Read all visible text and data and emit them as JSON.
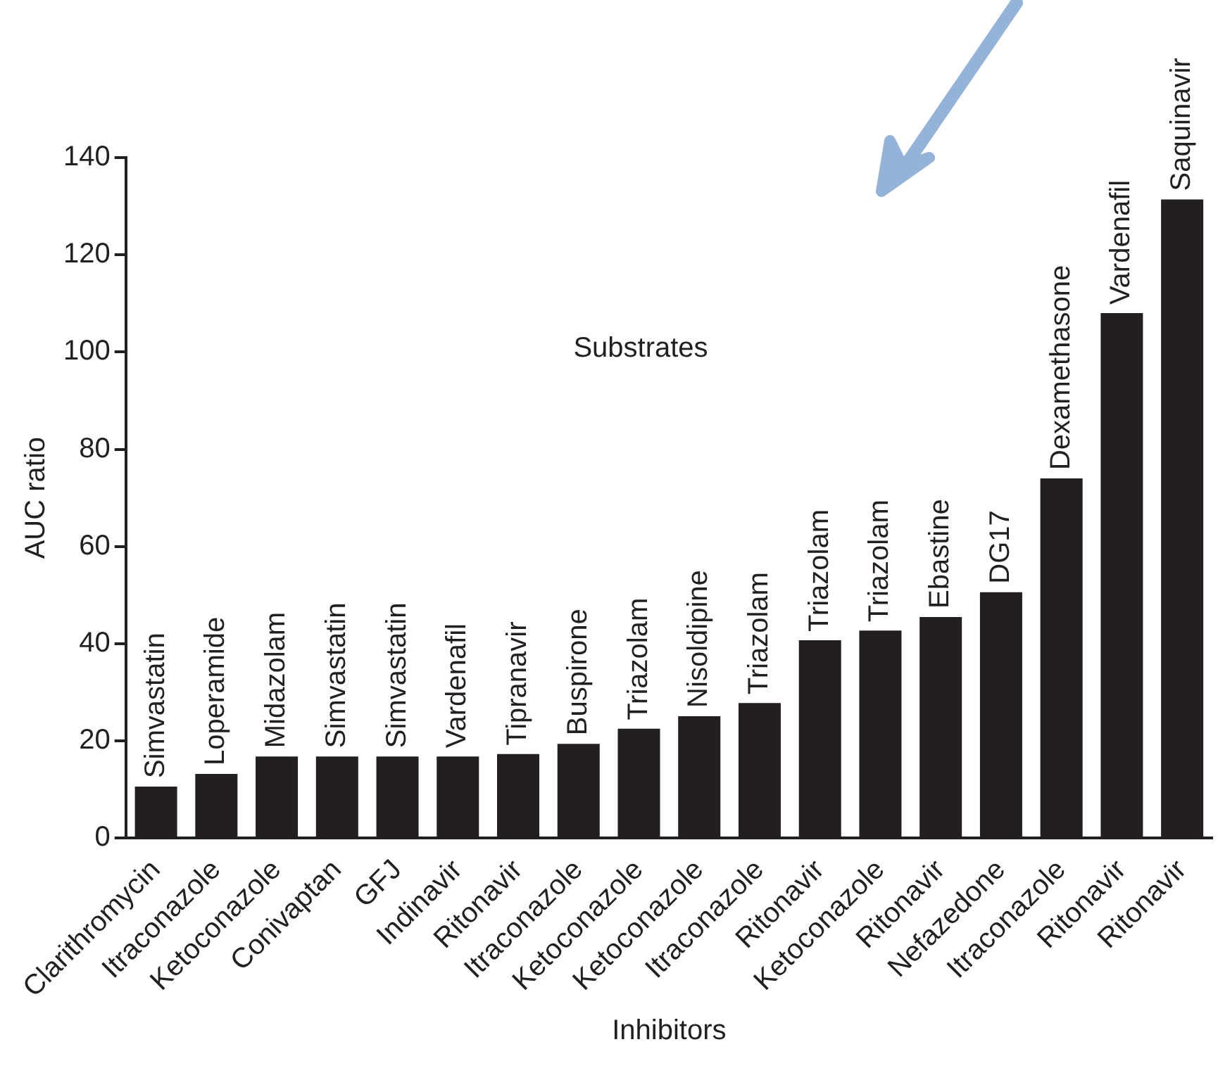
{
  "chart_data": {
    "type": "bar",
    "xlabel": "Inhibitors",
    "ylabel": "AUC ratio",
    "annotations": [
      "Substrates"
    ],
    "categories": [
      "Clarithromycin",
      "Itraconazole",
      "Ketoconazole",
      "Conivaptan",
      "GFJ",
      "Indinavir",
      "Ritonavir",
      "Itraconazole",
      "Ketoconazole",
      "Ketoconazole",
      "Itraconazole",
      "Ritonavir",
      "Ketoconazole",
      "Ritonavir",
      "Nefazedone",
      "Itraconazole",
      "Ritonavir",
      "Ritonavir"
    ],
    "values": [
      10.6,
      13.2,
      16.8,
      16.8,
      16.8,
      16.8,
      17.3,
      19.4,
      22.5,
      25.1,
      27.8,
      40.7,
      42.7,
      45.5,
      50.6,
      74,
      108,
      131.4
    ],
    "value_labels": [
      "Simvastatin",
      "Loperamide",
      "Midazolam",
      "Simvastatin",
      "Simvastatin",
      "Vardenafil",
      "Tipranavir",
      "Buspirone",
      "Triazolam",
      "Nisoldipine",
      "Triazolam",
      "Triazolam",
      "Triazolam",
      "Ebastine",
      "DG17",
      "Dexamethasone",
      "Vardenafil",
      "Saquinavir"
    ],
    "color": "#231f20",
    "ylim": [
      0,
      140
    ],
    "yticks": [
      0,
      20,
      40,
      60,
      80,
      100,
      120,
      140
    ],
    "grid": false,
    "legend": false
  }
}
